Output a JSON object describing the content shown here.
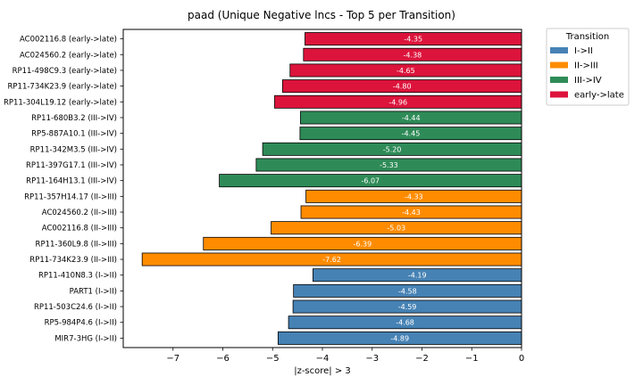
{
  "chart_data": {
    "type": "bar",
    "orientation": "horizontal",
    "title": "paad (Unique Negative lncs - Top 5 per Transition)",
    "xlabel": "|z-score| > 3",
    "xlim": [
      -8.0,
      0
    ],
    "xticks": [
      -7,
      -6,
      -5,
      -4,
      -3,
      -2,
      -1,
      0
    ],
    "grid": false,
    "legend": {
      "title": "Transition",
      "placement": "outside-top-right",
      "entries": [
        {
          "label": "I->II",
          "color": "#4682b4"
        },
        {
          "label": "II->III",
          "color": "#ff8c00"
        },
        {
          "label": "III->IV",
          "color": "#2e8b57"
        },
        {
          "label": "early->late",
          "color": "#dc143c"
        }
      ]
    },
    "bars": [
      {
        "label": "AC002116.8 (early->late)",
        "value": -4.35,
        "value_label": "-4.35",
        "group": "early->late"
      },
      {
        "label": "AC024560.2 (early->late)",
        "value": -4.38,
        "value_label": "-4.38",
        "group": "early->late"
      },
      {
        "label": "RP11-498C9.3 (early->late)",
        "value": -4.65,
        "value_label": "-4.65",
        "group": "early->late"
      },
      {
        "label": "RP11-734K23.9 (early->late)",
        "value": -4.8,
        "value_label": "-4.80",
        "group": "early->late"
      },
      {
        "label": "RP11-304L19.12 (early->late)",
        "value": -4.96,
        "value_label": "-4.96",
        "group": "early->late"
      },
      {
        "label": "RP11-680B3.2 (III->IV)",
        "value": -4.44,
        "value_label": "-4.44",
        "group": "III->IV"
      },
      {
        "label": "RP5-887A10.1 (III->IV)",
        "value": -4.45,
        "value_label": "-4.45",
        "group": "III->IV"
      },
      {
        "label": "RP11-342M3.5 (III->IV)",
        "value": -5.2,
        "value_label": "-5.20",
        "group": "III->IV"
      },
      {
        "label": "RP11-397G17.1 (III->IV)",
        "value": -5.33,
        "value_label": "-5.33",
        "group": "III->IV"
      },
      {
        "label": "RP11-164H13.1 (III->IV)",
        "value": -6.07,
        "value_label": "-6.07",
        "group": "III->IV"
      },
      {
        "label": "RP11-357H14.17 (II->III)",
        "value": -4.33,
        "value_label": "-4.33",
        "group": "II->III"
      },
      {
        "label": "AC024560.2 (II->III)",
        "value": -4.43,
        "value_label": "-4.43",
        "group": "II->III"
      },
      {
        "label": "AC002116.8 (II->III)",
        "value": -5.03,
        "value_label": "-5.03",
        "group": "II->III"
      },
      {
        "label": "RP11-360L9.8 (II->III)",
        "value": -6.39,
        "value_label": "-6.39",
        "group": "II->III"
      },
      {
        "label": "RP11-734K23.9 (II->III)",
        "value": -7.62,
        "value_label": "-7.62",
        "group": "II->III"
      },
      {
        "label": "RP11-410N8.3 (I->II)",
        "value": -4.19,
        "value_label": "-4.19",
        "group": "I->II"
      },
      {
        "label": "PART1 (I->II)",
        "value": -4.58,
        "value_label": "-4.58",
        "group": "I->II"
      },
      {
        "label": "RP11-503C24.6 (I->II)",
        "value": -4.59,
        "value_label": "-4.59",
        "group": "I->II"
      },
      {
        "label": "RP5-984P4.6 (I->II)",
        "value": -4.68,
        "value_label": "-4.68",
        "group": "I->II"
      },
      {
        "label": "MIR7-3HG (I->II)",
        "value": -4.89,
        "value_label": "-4.89",
        "group": "I->II"
      }
    ]
  }
}
